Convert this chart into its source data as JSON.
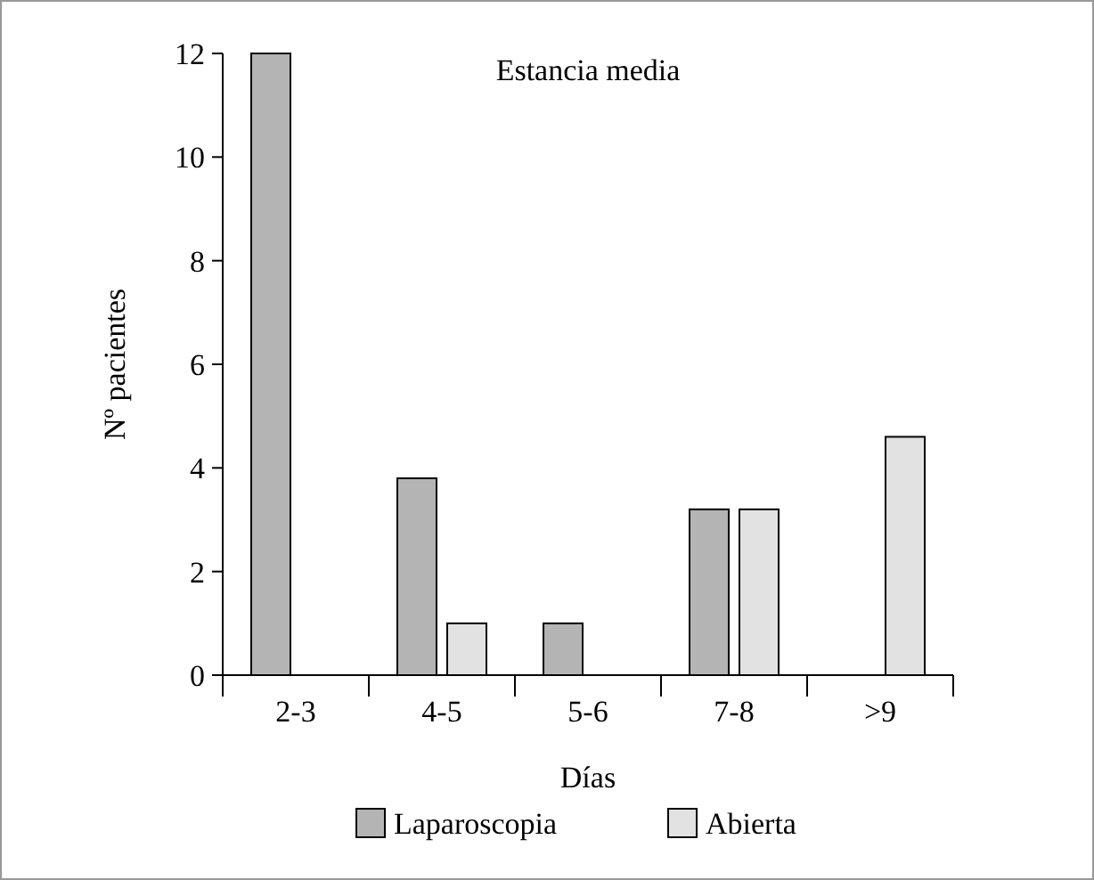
{
  "chart_data": {
    "type": "bar",
    "title": "Estancia media",
    "xlabel": "Días",
    "ylabel": "Nº pacientes",
    "categories": [
      "2-3",
      "4-5",
      "5-6",
      "7-8",
      ">9"
    ],
    "series": [
      {
        "name": "Laparoscopia",
        "color": "#b4b4b4",
        "values": [
          12,
          3.8,
          1,
          3.2,
          null
        ]
      },
      {
        "name": "Abierta",
        "color": "#e2e2e2",
        "values": [
          null,
          1,
          null,
          3.2,
          4.6
        ]
      }
    ],
    "ylim": [
      0,
      12
    ],
    "yticks": [
      0,
      2,
      4,
      6,
      8,
      10,
      12
    ],
    "grid": false,
    "legend": "bottom"
  }
}
